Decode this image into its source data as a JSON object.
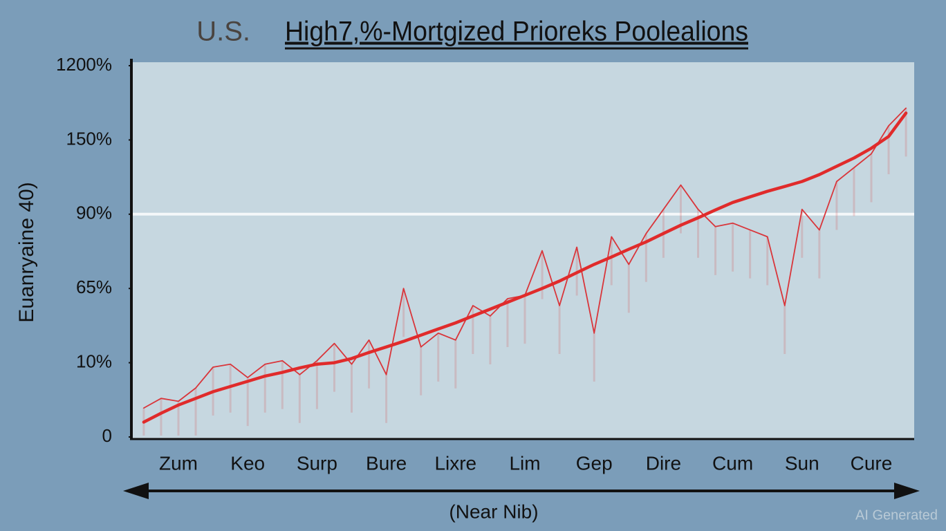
{
  "chart_data": {
    "type": "line",
    "title": [
      "U.S.",
      "High7,%-Mortgized Prioreks Poolealions"
    ],
    "y_label": "Euanryaine 40)",
    "x_label": "(Near Nib)",
    "watermark": "AI Generated",
    "categories": [
      null,
      null,
      "Zum",
      null,
      null,
      null,
      "Keo",
      null,
      null,
      null,
      "Surp",
      null,
      null,
      null,
      "Bure",
      null,
      null,
      null,
      "Lixre",
      null,
      null,
      null,
      "Lim",
      null,
      null,
      null,
      "Gep",
      null,
      null,
      null,
      "Dire",
      null,
      null,
      null,
      "Cum",
      null,
      null,
      null,
      "Sun",
      null,
      null,
      null,
      "Cure",
      null,
      null
    ],
    "series": [
      {
        "color": "#d9353a",
        "width": 1.8,
        "values": [
          3.9,
          5.2,
          4.8,
          6.6,
          9.4,
          9.8,
          8.0,
          9.8,
          11.5,
          8.4,
          11.5,
          24.3,
          9.8,
          26.8,
          8.4,
          65,
          21.7,
          31.9,
          26.8,
          52.3,
          44.6,
          57.4,
          59.9,
          77.7,
          52.3,
          78.9,
          31.9,
          82.4,
          73.1,
          83.5,
          93.9,
          113.6,
          93.9,
          85.8,
          87.0,
          84.7,
          82.4,
          52.3,
          93.9,
          84.7,
          116.4,
          127.6,
          138.8,
          350,
          600
        ]
      },
      {
        "color": "#e02b2b",
        "width": 4.5,
        "values": [
          2.0,
          3.2,
          4.3,
          5.2,
          6.1,
          6.8,
          7.5,
          8.2,
          8.7,
          9.3,
          9.8,
          10,
          13.1,
          17.6,
          21.7,
          25.8,
          30.4,
          35.0,
          39.5,
          44.6,
          49.7,
          54.8,
          59.9,
          65,
          67.5,
          70.3,
          73.1,
          75.6,
          78.2,
          80.7,
          83.5,
          86.3,
          88.8,
          93.4,
          99.5,
          104.0,
          108.5,
          112.4,
          116.4,
          122.0,
          128.7,
          135.4,
          143.3,
          200,
          530
        ]
      }
    ],
    "ylim": [
      0,
      1200
    ],
    "yscale": "piecewise",
    "yticks": [
      0,
      {
        "value": 10,
        "label": "10%"
      },
      {
        "value": 65,
        "label": "65%"
      },
      {
        "value": 90,
        "label": "90%"
      },
      {
        "value": 150,
        "label": "150%"
      },
      {
        "value": 1200,
        "label": "1200%"
      }
    ],
    "reference_line": 90
  }
}
